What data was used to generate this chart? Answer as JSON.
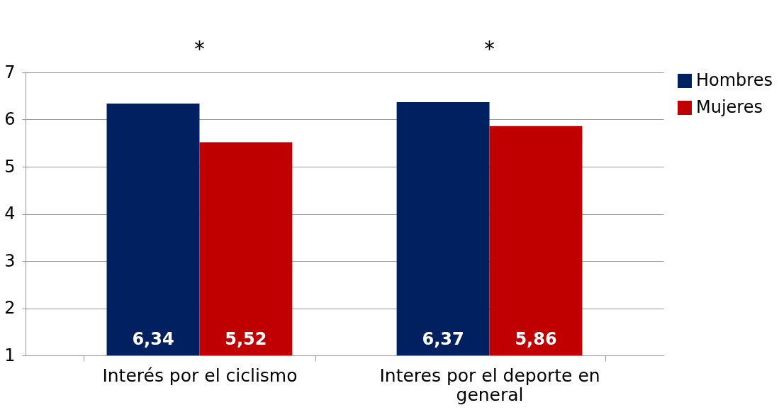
{
  "chart_data": {
    "type": "bar",
    "categories": [
      "Interés por el ciclismo",
      "Interes por el deporte en general"
    ],
    "series": [
      {
        "name": "Hombres",
        "color": "#002060",
        "values": [
          6.34,
          6.37
        ],
        "value_labels": [
          "6,34",
          "6,37"
        ]
      },
      {
        "name": "Mujeres",
        "color": "#c00000",
        "values": [
          5.52,
          5.86
        ],
        "value_labels": [
          "5,52",
          "5,86"
        ]
      }
    ],
    "ylim": [
      1,
      7
    ],
    "yticks": [
      1,
      2,
      3,
      4,
      5,
      6,
      7
    ],
    "grid": "y",
    "legend": "right",
    "annotations": [
      "*",
      "*"
    ]
  }
}
